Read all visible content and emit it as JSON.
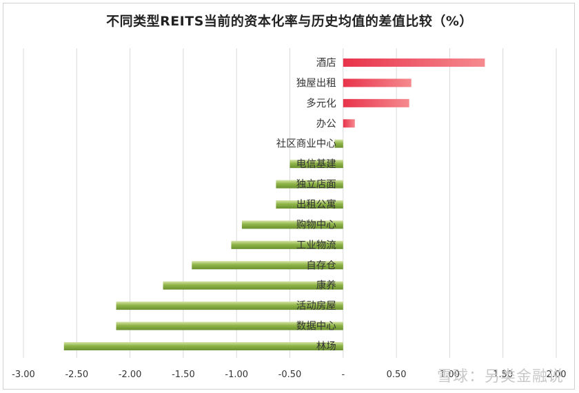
{
  "chart_data": {
    "type": "bar",
    "orientation": "horizontal",
    "title": "不同类型REITS当前的资本化率与历史均值的差值比较（%）",
    "categories": [
      "酒店",
      "独屋出租",
      "多元化",
      "办公",
      "社区商业中心",
      "电信基建",
      "独立店面",
      "出租公寓",
      "购物中心",
      "工业物流",
      "自存仓",
      "康养",
      "活动房屋",
      "数据中心",
      "林场"
    ],
    "values": [
      1.33,
      0.64,
      0.62,
      0.11,
      -0.08,
      -0.5,
      -0.63,
      -0.63,
      -0.95,
      -1.05,
      -1.42,
      -1.69,
      -2.13,
      -2.13,
      -2.62
    ],
    "xlim": [
      -3.0,
      2.0
    ],
    "xticks": [
      -3.0,
      -2.5,
      -2.0,
      -1.5,
      -1.0,
      -0.5,
      0,
      0.5,
      1.0,
      1.5,
      2.0
    ],
    "xtick_labels": [
      "-3.00",
      "-2.50",
      "-2.00",
      "-1.50",
      "-1.00",
      "-0.50",
      "-",
      "0.50",
      "1.00",
      "1.50",
      "2.00"
    ],
    "xlabel": "",
    "ylabel": "",
    "grid": true,
    "legend": "none",
    "colors": {
      "positive": "#e8334a",
      "positive_light": "#f58a8f",
      "negative": "#7fa33a",
      "negative_light": "#d7e5a8",
      "grid": "#d9d9d9"
    }
  },
  "watermark": "雪球：另类金融说"
}
